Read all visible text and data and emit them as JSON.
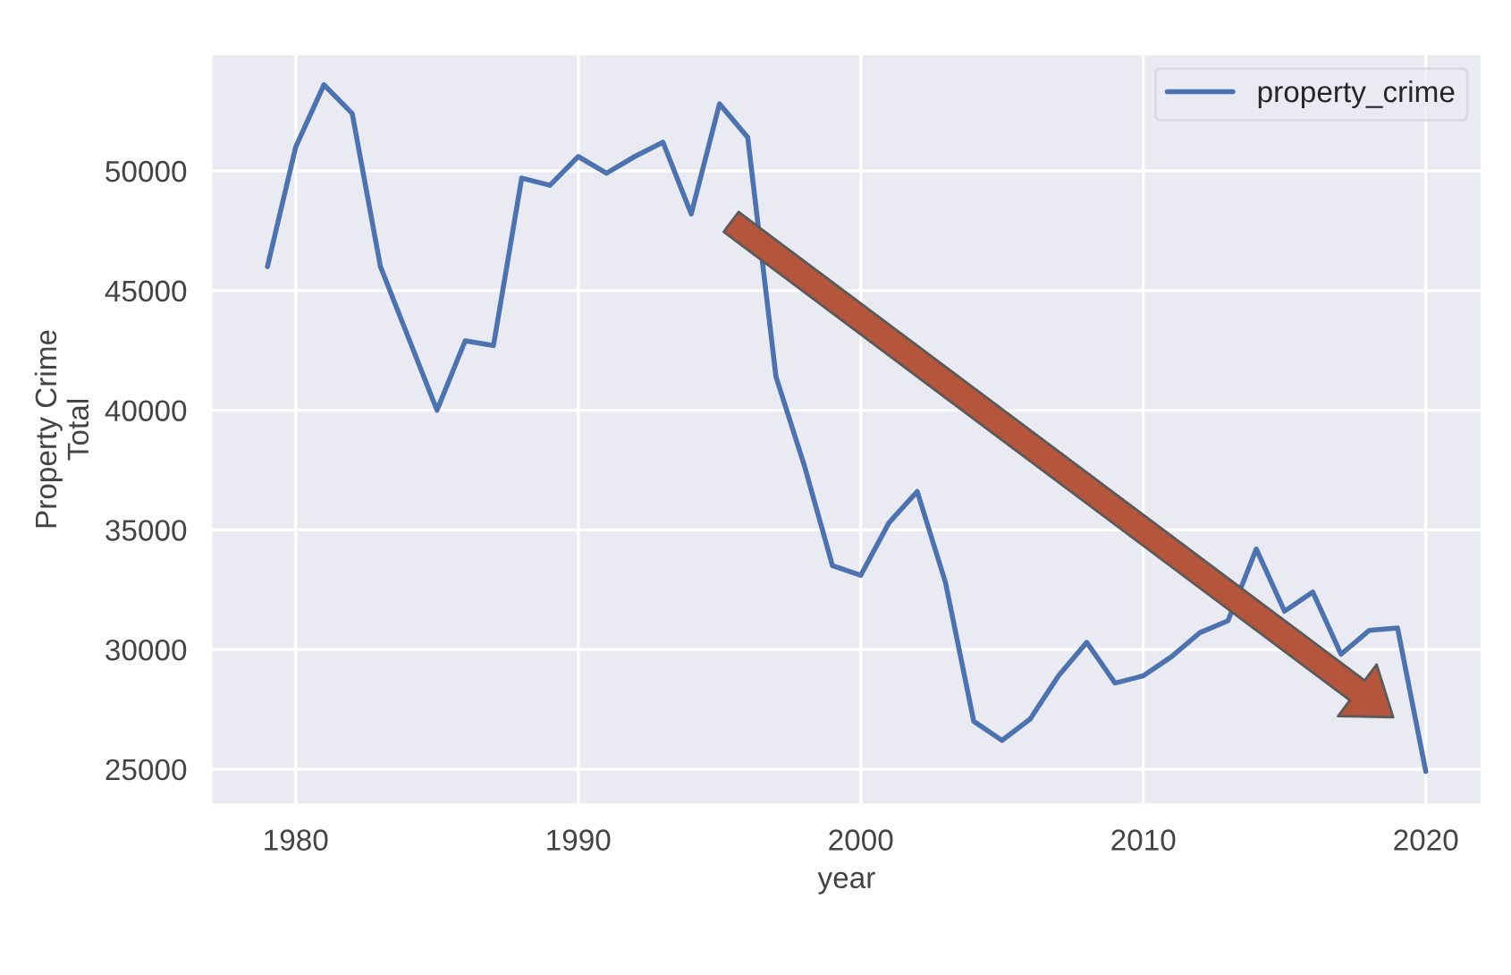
{
  "chart_data": {
    "type": "line",
    "x": [
      1979,
      1980,
      1981,
      1982,
      1983,
      1984,
      1985,
      1986,
      1987,
      1988,
      1989,
      1990,
      1991,
      1992,
      1993,
      1994,
      1995,
      1996,
      1997,
      1998,
      1999,
      2000,
      2001,
      2002,
      2003,
      2004,
      2005,
      2006,
      2007,
      2008,
      2009,
      2010,
      2011,
      2012,
      2013,
      2014,
      2015,
      2016,
      2017,
      2018,
      2019,
      2020
    ],
    "series": [
      {
        "name": "property_crime",
        "color": "#4c72b0",
        "values": [
          46000,
          51000,
          53600,
          52400,
          46000,
          43000,
          40000,
          42900,
          42700,
          49700,
          49400,
          50600,
          49900,
          50600,
          51200,
          48200,
          52800,
          51400,
          41400,
          37700,
          33500,
          33100,
          35300,
          36600,
          32800,
          27000,
          26200,
          27100,
          28900,
          30300,
          28600,
          28900,
          29700,
          30700,
          31200,
          34200,
          31600,
          32400,
          29800,
          30800,
          30900,
          24900
        ]
      }
    ],
    "xlabel": "year",
    "ylabel": "Property Crime\nTotal",
    "xlim": [
      1977,
      2022
    ],
    "ylim": [
      23500,
      54900
    ],
    "xticks": [
      1980,
      1990,
      2000,
      2010,
      2020
    ],
    "yticks": [
      25000,
      30000,
      35000,
      40000,
      45000,
      50000
    ],
    "grid": true,
    "legend": "top right"
  }
}
